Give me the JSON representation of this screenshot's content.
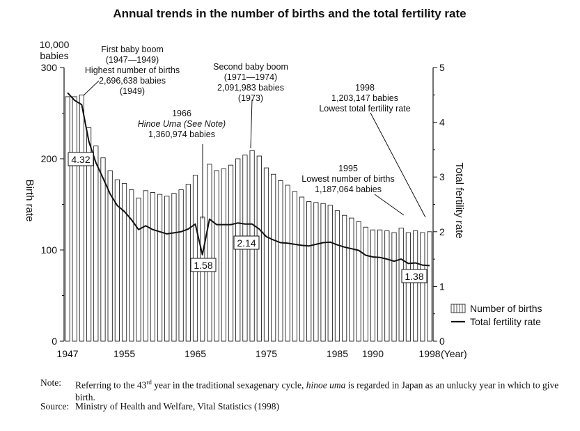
{
  "chart_data": {
    "type": "bar+line",
    "title": "Annual trends in the number of births and the total fertility rate",
    "left_axis": {
      "unit_line1": "10,000",
      "unit_line2": "babies",
      "label": "Birth rate",
      "ylim": [
        0,
        300
      ],
      "ticks": [
        "0",
        "100",
        "200",
        "300"
      ]
    },
    "right_axis": {
      "label": "Total fertility rate",
      "ylim": [
        0,
        5
      ],
      "ticks": [
        "0",
        "1",
        "2",
        "3",
        "4",
        "5"
      ]
    },
    "x_axis": {
      "ticks": [
        "1947",
        "1955",
        "1965",
        "1975",
        "1985",
        "1990",
        "1998"
      ],
      "unit": "(Year)"
    },
    "x": [
      1947,
      1948,
      1949,
      1950,
      1951,
      1952,
      1953,
      1954,
      1955,
      1956,
      1957,
      1958,
      1959,
      1960,
      1961,
      1962,
      1963,
      1964,
      1965,
      1966,
      1967,
      1968,
      1969,
      1970,
      1971,
      1972,
      1973,
      1974,
      1975,
      1976,
      1977,
      1978,
      1979,
      1980,
      1981,
      1982,
      1983,
      1984,
      1985,
      1986,
      1987,
      1988,
      1989,
      1990,
      1991,
      1992,
      1993,
      1994,
      1995,
      1996,
      1997,
      1998
    ],
    "series": [
      {
        "name": "Number of births",
        "kind": "bar",
        "values": [
          268,
          268,
          270,
          234,
          214,
          201,
          187,
          177,
          173,
          166,
          157,
          165,
          163,
          161,
          159,
          162,
          166,
          172,
          182,
          136,
          194,
          187,
          189,
          193,
          200,
          204,
          209,
          203,
          190,
          183,
          176,
          171,
          164,
          158,
          153,
          152,
          151,
          149,
          143,
          138,
          135,
          131,
          125,
          122,
          122,
          121,
          119,
          124,
          119,
          121,
          119,
          120
        ]
      },
      {
        "name": "Total fertility rate",
        "kind": "line",
        "values": [
          4.54,
          4.4,
          4.32,
          3.65,
          3.26,
          2.98,
          2.69,
          2.48,
          2.37,
          2.22,
          2.04,
          2.11,
          2.04,
          2.0,
          1.96,
          1.98,
          2.0,
          2.05,
          2.14,
          1.58,
          2.23,
          2.13,
          2.13,
          2.13,
          2.16,
          2.14,
          2.14,
          2.05,
          1.91,
          1.85,
          1.8,
          1.79,
          1.77,
          1.75,
          1.74,
          1.77,
          1.8,
          1.81,
          1.76,
          1.72,
          1.69,
          1.66,
          1.57,
          1.54,
          1.53,
          1.5,
          1.46,
          1.5,
          1.42,
          1.43,
          1.39,
          1.38
        ]
      }
    ],
    "legend": {
      "position": "right",
      "bar_label": "Number of births",
      "line_label": "Total fertility rate"
    },
    "value_labels": [
      {
        "year": 1949,
        "text": "4.32"
      },
      {
        "year": 1966,
        "text": "1.58"
      },
      {
        "year": 1973,
        "text": "2.14"
      },
      {
        "year": 1998,
        "text": "1.38"
      }
    ],
    "annotations": [
      {
        "year": 1949,
        "lines": [
          "First baby boom",
          "(1947—1949)",
          "Highest number of births",
          "2,696,638 babies",
          "(1949)"
        ]
      },
      {
        "year": 1966,
        "lines": [
          "1966",
          "Hinoe Uma (See Note)",
          "1,360,974 babies"
        ]
      },
      {
        "year": 1973,
        "lines": [
          "Second baby boom",
          "(1971—1974)",
          "2,091,983 babies",
          "(1973)"
        ]
      },
      {
        "year": 1998,
        "lines": [
          "1998",
          "1,203,147 babies",
          "Lowest total fertility rate"
        ]
      },
      {
        "year": 1995,
        "lines": [
          "1995",
          "Lowest number of births",
          "1,187,064 babies"
        ]
      }
    ]
  },
  "footer": {
    "note_label": "Note:",
    "note_text_pre": "Referring to the 43",
    "note_sup": "rd",
    "note_text_mid": " year in the traditional sexagenary cycle, ",
    "note_italic": "hinoe uma",
    "note_text_post": " is regarded in Japan as an unlucky year in which to give birth.",
    "source_label": "Source:",
    "source_text": "Ministry of Health and Welfare, Vital Statistics (1998)"
  }
}
